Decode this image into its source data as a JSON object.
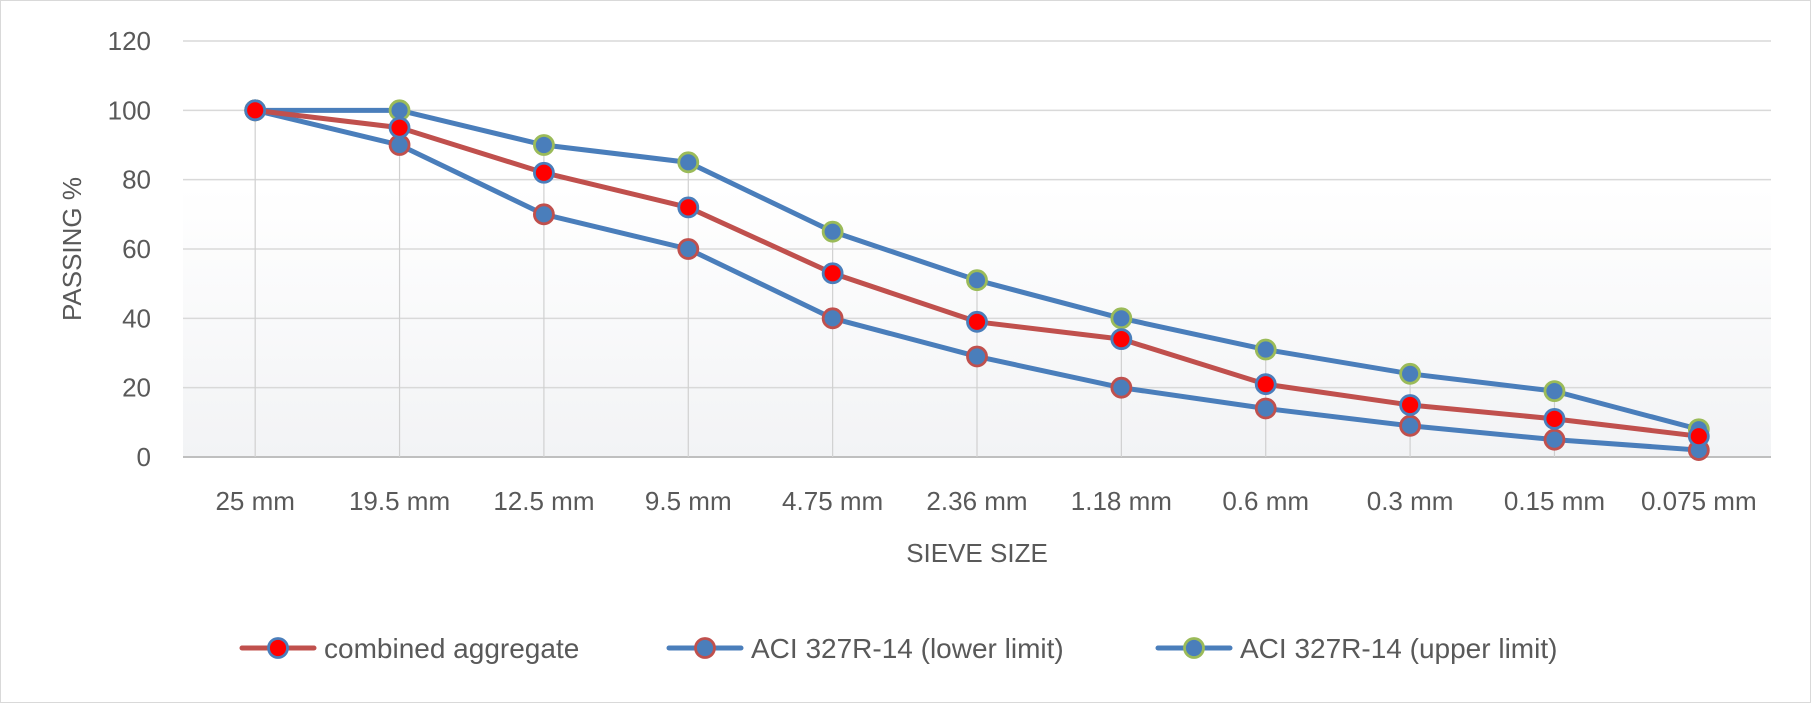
{
  "chart_data": {
    "type": "line",
    "title": "",
    "xlabel": "SIEVE SIZE",
    "ylabel": "PASSING %",
    "ylim": [
      0,
      120
    ],
    "yticks": [
      0,
      20,
      40,
      60,
      80,
      100,
      120
    ],
    "grid": true,
    "legend_position": "bottom",
    "categories": [
      "25 mm",
      "19.5 mm",
      "12.5 mm",
      "9.5 mm",
      "4.75 mm",
      "2.36 mm",
      "1.18 mm",
      "0.6 mm",
      "0.3 mm",
      "0.15 mm",
      "0.075 mm"
    ],
    "series": [
      {
        "name": "ACI 327R-14 (lower limit)",
        "line_color": "#4a7ebb",
        "marker_fill": "#4a7ebb",
        "marker_edge": "#c0504d",
        "values": [
          100,
          90,
          70,
          60,
          40,
          29,
          20,
          14,
          9,
          5,
          2
        ]
      },
      {
        "name": "ACI 327R-14 (upper limit)",
        "line_color": "#4a7ebb",
        "marker_fill": "#4a7ebb",
        "marker_edge": "#9bbb59",
        "values": [
          100,
          100,
          90,
          85,
          65,
          51,
          40,
          31,
          24,
          19,
          8
        ]
      },
      {
        "name": "combined aggregate",
        "line_color": "#c0504d",
        "marker_fill": "#ff0000",
        "marker_edge": "#4a7ebb",
        "values": [
          100,
          95,
          82,
          72,
          53,
          39,
          34,
          21,
          15,
          11,
          6
        ]
      }
    ],
    "legend_order": [
      2,
      0,
      1
    ]
  }
}
